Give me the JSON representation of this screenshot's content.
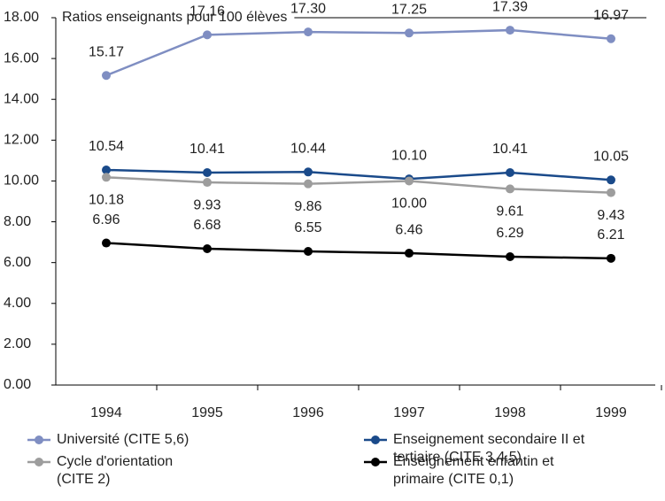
{
  "chart_data": {
    "type": "line",
    "title": "Ratios enseignants pour 100 élèves",
    "categories": [
      "1994",
      "1995",
      "1996",
      "1997",
      "1998",
      "1999"
    ],
    "series": [
      {
        "name": "Université (CITE 5,6)",
        "color": "#7f8ec2",
        "values": [
          15.17,
          17.16,
          17.3,
          17.25,
          17.39,
          16.97
        ],
        "value_labels": [
          "15.17",
          "17.16",
          "17.30",
          "17.25",
          "17.39",
          "16.97"
        ]
      },
      {
        "name": "Enseignement secondaire II et tertiaire (CITE 3,4,5)",
        "color": "#1a4a8a",
        "values": [
          10.54,
          10.41,
          10.44,
          10.1,
          10.41,
          10.05
        ],
        "value_labels": [
          "10.54",
          "10.41",
          "10.44",
          "10.10",
          "10.41",
          "10.05"
        ]
      },
      {
        "name": "Cycle d'orientation (CITE 2)",
        "color": "#9d9d9d",
        "values": [
          10.18,
          9.93,
          9.86,
          10.0,
          9.61,
          9.43
        ],
        "value_labels": [
          "10.18",
          "9.93",
          "9.86",
          "10.00",
          "9.61",
          "9.43"
        ]
      },
      {
        "name": "Enseignement enfantin et primaire (CITE 0,1)",
        "color": "#000000",
        "values": [
          6.96,
          6.68,
          6.55,
          6.46,
          6.29,
          6.21
        ],
        "value_labels": [
          "6.96",
          "6.68",
          "6.55",
          "6.46",
          "6.29",
          "6.21"
        ]
      }
    ],
    "ylim": [
      0,
      18
    ],
    "yticks": [
      {
        "value": 0,
        "label": "0.00"
      },
      {
        "value": 2,
        "label": "2.00"
      },
      {
        "value": 4,
        "label": "4.00"
      },
      {
        "value": 6,
        "label": "6.00"
      },
      {
        "value": 8,
        "label": "8.00"
      },
      {
        "value": 10,
        "label": "10.00"
      },
      {
        "value": 12,
        "label": "12.00"
      },
      {
        "value": 14,
        "label": "14.00"
      },
      {
        "value": 16,
        "label": "16.00"
      },
      {
        "value": 18,
        "label": "18.00"
      }
    ]
  }
}
